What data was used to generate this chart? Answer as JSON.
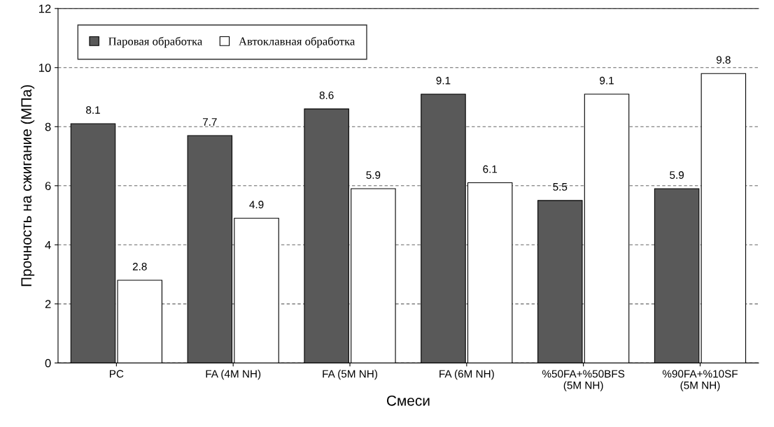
{
  "chart_data": {
    "type": "bar",
    "xlabel": "Смеси",
    "ylabel": "Прочность на сжигание (МПа)",
    "categories": [
      "PC",
      "FA (4M NH)",
      "FA (5M NH)",
      "FA (6M NH)",
      "%50FA+%50BFS\n(5M NH)",
      "%90FA+%10SF\n(5M NH)"
    ],
    "series": [
      {
        "name": "Паровая обработка",
        "color": "#595959",
        "values": [
          8.1,
          7.7,
          8.6,
          9.1,
          5.5,
          5.9
        ]
      },
      {
        "name": "Автоклавная обработка",
        "color": "#ffffff",
        "values": [
          2.8,
          4.9,
          5.9,
          6.1,
          9.1,
          9.8
        ]
      }
    ],
    "ylim": [
      0,
      12
    ],
    "yticks": [
      0,
      2,
      4,
      6,
      8,
      10,
      12
    ],
    "grid": "y",
    "legend": "top left",
    "data_labels": true
  }
}
